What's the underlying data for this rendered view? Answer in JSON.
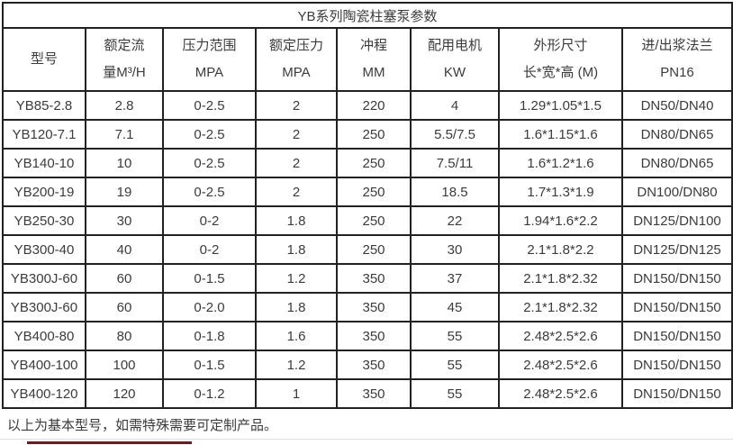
{
  "title": "YB系列陶瓷柱塞泵参数",
  "table": {
    "columns": [
      {
        "line1": "型号",
        "line2": ""
      },
      {
        "line1": "额定流",
        "line2": "量M³/H"
      },
      {
        "line1": "压力范围",
        "line2": "MPA"
      },
      {
        "line1": "额定压力",
        "line2": "MPA"
      },
      {
        "line1": "冲程",
        "line2": "MM"
      },
      {
        "line1": "配用电机",
        "line2": "KW"
      },
      {
        "line1": "外形尺寸",
        "line2": "长*宽*高 (M)"
      },
      {
        "line1": "进/出浆法兰",
        "line2": "PN16"
      }
    ],
    "rows": [
      [
        "YB85-2.8",
        "2.8",
        "0-2.5",
        "2",
        "220",
        "4",
        "1.29*1.05*1.5",
        "DN50/DN40"
      ],
      [
        "YB120-7.1",
        "7.1",
        "0-2.5",
        "2",
        "250",
        "5.5/7.5",
        "1.6*1.15*1.6",
        "DN80/DN65"
      ],
      [
        "YB140-10",
        "10",
        "0-2.5",
        "2",
        "250",
        "7.5/11",
        "1.6*1.2*1.6",
        "DN80/DN65"
      ],
      [
        "YB200-19",
        "19",
        "0-2.5",
        "2",
        "250",
        "18.5",
        "1.7*1.3*1.9",
        "DN100/DN80"
      ],
      [
        "YB250-30",
        "30",
        "0-2",
        "1.8",
        "250",
        "22",
        "1.94*1.6*2.2",
        "DN125/DN100"
      ],
      [
        "YB300-40",
        "40",
        "0-2",
        "1.8",
        "250",
        "30",
        "2.1*1.8*2.2",
        "DN125/DN125"
      ],
      [
        "YB300J-60",
        "60",
        "0-1.5",
        "1.2",
        "350",
        "37",
        "2.1*1.8*2.32",
        "DN150/DN150"
      ],
      [
        "YB300J-60",
        "60",
        "0-2.0",
        "1.8",
        "350",
        "45",
        "2.1*1.8*2.32",
        "DN150/DN150"
      ],
      [
        "YB400-80",
        "80",
        "0-1.8",
        "1.6",
        "350",
        "55",
        "2.48*2.5*2.6",
        "DN150/DN150"
      ],
      [
        "YB400-100",
        "100",
        "0-1.5",
        "1.2",
        "350",
        "55",
        "2.48*2.5*2.6",
        "DN150/DN150"
      ],
      [
        "YB400-120",
        "120",
        "0-1.2",
        "1",
        "350",
        "55",
        "2.48*2.5*2.6",
        "DN150/DN150"
      ]
    ]
  },
  "footer_note": "以上为基本型号，如需特殊需要可定制产品。",
  "colors": {
    "border": "#212121",
    "text": "#3b3b3b",
    "divider": "#dedede",
    "cutoff_bar": "#5a2424"
  }
}
